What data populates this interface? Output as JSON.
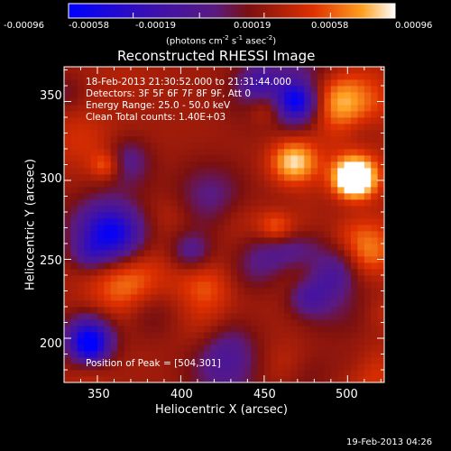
{
  "colorbar": {
    "ticks": [
      "-0.00096",
      "-0.00058",
      "-0.00019",
      "0.00019",
      "0.00058",
      "0.00096"
    ],
    "label_text": "(photons cm",
    "label_sup1": "-2",
    "label_mid": " s",
    "label_sup2": "-1",
    "label_end": " asec",
    "label_sup3": "-2",
    "label_close": ")"
  },
  "chart_data": {
    "type": "heatmap",
    "title": "Reconstructed RHESSI Image",
    "xlabel": "Heliocentric X (arcsec)",
    "ylabel": "Heliocentric Y (arcsec)",
    "xlim": [
      330,
      522
    ],
    "ylim": [
      172,
      372
    ],
    "xticks": [
      350,
      400,
      450,
      500
    ],
    "yticks": [
      200,
      250,
      300,
      350
    ],
    "colorscale": {
      "min": -0.00096,
      "max": 0.00096
    },
    "annotations": [
      "18-Feb-2013 21:30:52.000 to 21:31:44.000",
      "Detectors: 3F 5F 6F 7F 8F 9F, Att 0",
      "Energy Range: 25.0 - 50.0 keV",
      "Clean    Total counts: 1.40E+03"
    ],
    "peak_label": "Position of Peak = [504,301]",
    "peak": [
      504,
      301
    ]
  },
  "timestamp": "19-Feb-2013 04:26",
  "colors": {
    "background": "#000000",
    "foreground": "#ffffff"
  }
}
